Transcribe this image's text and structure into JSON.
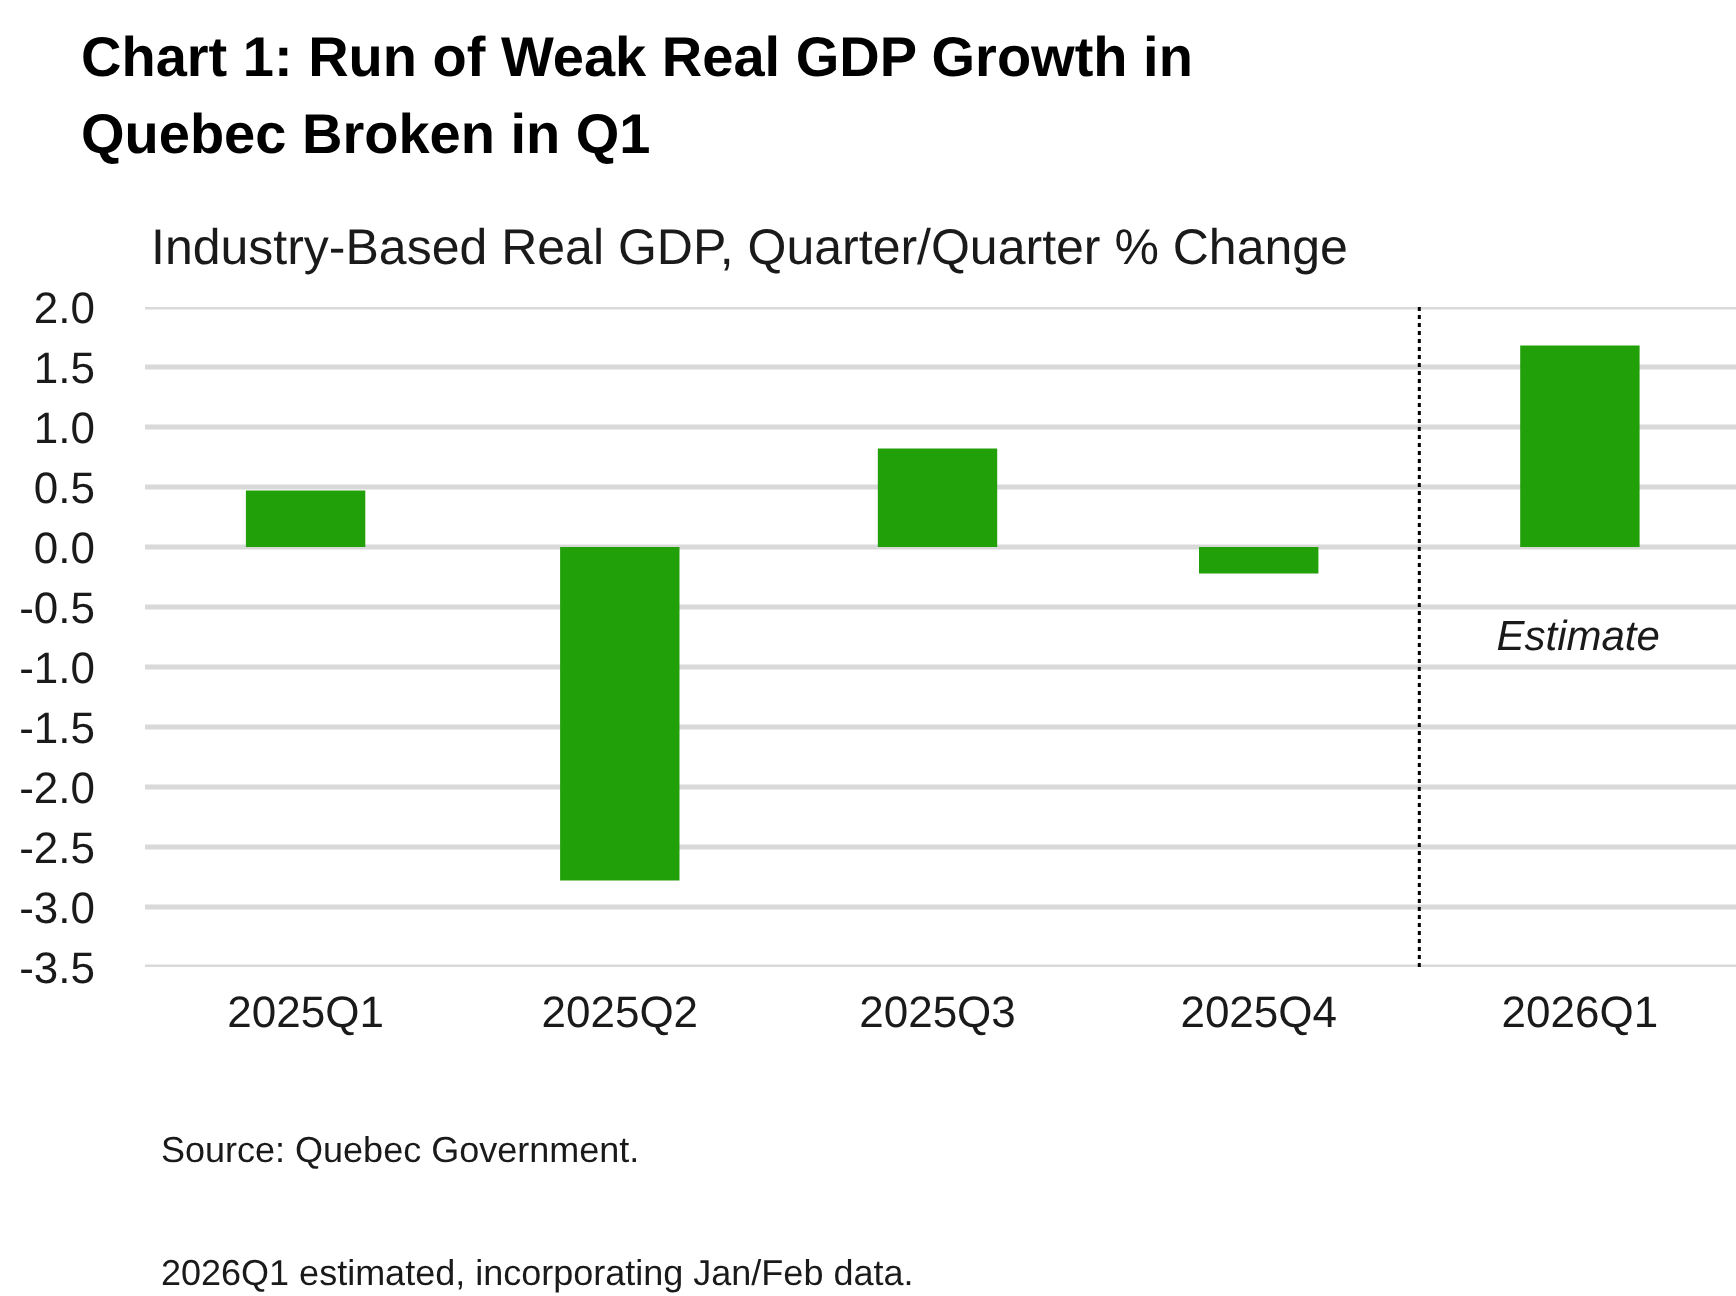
{
  "chart_data": {
    "type": "bar",
    "title": "Chart 1: Run of Weak Real GDP Growth in Quebec Broken in Q1",
    "subtitle": "Industry-Based Real GDP, Quarter/Quarter % Change",
    "x": [
      "2025-01",
      "2025-04",
      "2025-07",
      "2025-10",
      "2026-01"
    ],
    "values": [
      0.47,
      -2.78,
      0.82,
      -0.22,
      1.68
    ],
    "color": "#22a00a",
    "xlim": [
      "2024-11-16",
      "2026-02-15"
    ],
    "xticks": [
      {
        "value": "2025-01",
        "label": "2025Q1"
      },
      {
        "value": "2025-04",
        "label": "2025Q2"
      },
      {
        "value": "2025-07",
        "label": "2025Q3"
      },
      {
        "value": "2025-10",
        "label": "2025Q4"
      },
      {
        "value": "2026-01",
        "label": "2026Q1"
      }
    ],
    "ylim": [
      -3.5,
      2.0
    ],
    "yticks": [
      -3.5,
      {
        "value": -3,
        "label": "-3.0"
      },
      -2.5,
      {
        "value": -2,
        "label": "-2.0"
      },
      -1.5,
      {
        "value": -1,
        "label": "-1.0"
      },
      -0.5,
      {
        "value": 0,
        "label": "0.0"
      },
      0.5,
      {
        "value": 1,
        "label": "1.0"
      },
      1.5,
      {
        "value": 2,
        "label": "2.0"
      }
    ],
    "grid": "y",
    "ref_lines": [
      {
        "axis": "x",
        "value": "2025-11-16",
        "label": "Estimate",
        "color": "#000000",
        "line_style": "dotted"
      }
    ],
    "annotations": [
      "Source: Quebec Government.",
      "2026Q1 estimated, incorporating Jan/Feb data."
    ]
  }
}
